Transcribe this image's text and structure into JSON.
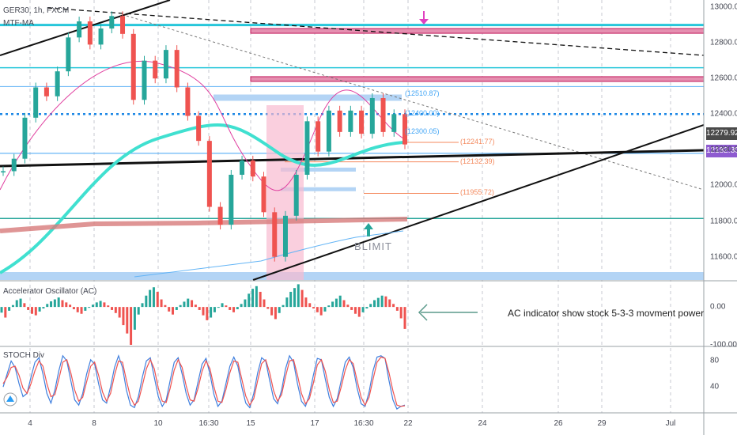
{
  "header": {
    "symbol": "GER30, 1h, FXCM",
    "overlay": "MTF-MA"
  },
  "panes": {
    "ac": {
      "title": "Accelerator Oscillator (AC)"
    },
    "stoch": {
      "title": "STOCH Div"
    }
  },
  "note": {
    "text": "AC indicator show stock 5-3-3 movment power"
  },
  "callout_label": {
    "text": "BLIMIT"
  },
  "price_badges": {
    "last": "12279.92",
    "current": "12182.30",
    "colors": {
      "last": "#4a4a4a",
      "current": "#8e5bd0"
    }
  },
  "level_labels": [
    {
      "value": 12510.87,
      "text": "(12510.87)",
      "color": "#42a5f5"
    },
    {
      "value": 12400.0,
      "text": "(12400.00)",
      "color": "#42a5f5"
    },
    {
      "value": 12300.05,
      "text": "(12300.05)",
      "color": "#42a5f5"
    },
    {
      "value": 12241.77,
      "text": "(12241.77)",
      "color": "#f48a5e"
    },
    {
      "value": 12132.39,
      "text": "(12132.39)",
      "color": "#f48a5e"
    },
    {
      "value": 11955.72,
      "text": "(11955.72)",
      "color": "#f48a5e"
    }
  ],
  "chart_data": [
    {
      "type": "line",
      "series": [
        {
          "name": "GER30",
          "y": [
            12080,
            12150,
            12380,
            12550,
            12500,
            12640,
            12830,
            12920,
            12790,
            12880,
            12950,
            12850,
            12480,
            12700,
            12600,
            12760,
            12550,
            12390,
            12250,
            11880,
            11780,
            12060,
            12140,
            12050,
            11850,
            11600,
            11830,
            12060,
            12360,
            12190,
            12420,
            12300,
            12420,
            12290,
            12490,
            12300,
            12400,
            12230
          ]
        }
      ],
      "x_ticks": [
        "4",
        "8",
        "10",
        "16:30",
        "15",
        "17",
        "16:30",
        "22",
        "24",
        "26",
        "29",
        "Jul"
      ],
      "y_ticks": [
        13000,
        12800,
        12600,
        12400,
        12200,
        12000,
        11800,
        11600
      ],
      "ylim": [
        11470,
        13040
      ],
      "colors": {
        "price": "#26a69a",
        "ma_fast": "#e040a0",
        "ma_slow": "#40e0d0",
        "ma_long": "#d77a7a"
      }
    },
    {
      "type": "bar",
      "title": "Accelerator Oscillator (AC)",
      "y_ticks": [
        0.0,
        -100.0
      ],
      "y_tick_labels": [
        "0.00",
        "-100.00"
      ],
      "ylim": [
        -100,
        65
      ],
      "values": [
        -15,
        -28,
        -10,
        5,
        18,
        22,
        10,
        -8,
        -18,
        -22,
        -12,
        -4,
        8,
        15,
        20,
        25,
        18,
        12,
        6,
        -6,
        -14,
        -18,
        -10,
        -2,
        6,
        12,
        16,
        12,
        4,
        -8,
        -16,
        -28,
        -48,
        -70,
        -100,
        -60,
        -20,
        10,
        30,
        45,
        52,
        40,
        20,
        5,
        -12,
        -20,
        -8,
        5,
        14,
        22,
        18,
        6,
        -8,
        -22,
        -35,
        -28,
        -14,
        0,
        10,
        4,
        -8,
        -14,
        -6,
        8,
        20,
        35,
        48,
        55,
        40,
        20,
        -5,
        -22,
        -32,
        -16,
        5,
        25,
        40,
        50,
        60,
        45,
        25,
        10,
        -4,
        -14,
        -22,
        -12,
        4,
        14,
        22,
        30,
        18,
        6,
        -8,
        -18,
        -26,
        -14,
        -4,
        8,
        18,
        24,
        30,
        28,
        20,
        8,
        -10,
        -30,
        -58
      ]
    },
    {
      "type": "line",
      "title": "STOCH Div",
      "y_ticks": [
        80,
        40
      ],
      "ylim": [
        0,
        100
      ],
      "series": [
        {
          "name": "K",
          "color": "#3f7fde",
          "y": [
            40,
            60,
            80,
            70,
            45,
            25,
            30,
            55,
            78,
            85,
            60,
            30,
            15,
            35,
            65,
            88,
            80,
            50,
            20,
            12,
            30,
            60,
            82,
            75,
            45,
            20,
            15,
            40,
            70,
            88,
            70,
            35,
            12,
            8,
            25,
            55,
            80,
            85,
            55,
            25,
            10,
            20,
            50,
            78,
            85,
            60,
            30,
            12,
            20,
            48,
            75,
            84,
            60,
            28,
            10,
            18,
            45,
            72,
            86,
            72,
            40,
            15,
            8,
            30,
            62,
            85,
            80,
            50,
            22,
            14,
            35,
            68,
            88,
            78,
            45,
            18,
            10,
            28,
            58,
            84,
            82,
            52,
            24,
            10,
            22,
            50,
            78,
            86,
            70,
            38,
            14,
            10,
            32,
            65,
            86,
            88,
            84,
            50,
            20,
            6,
            10,
            12
          ]
        },
        {
          "name": "D",
          "color": "#ef5350",
          "y": [
            45,
            55,
            70,
            72,
            58,
            38,
            30,
            45,
            65,
            80,
            72,
            45,
            25,
            28,
            52,
            78,
            82,
            62,
            35,
            18,
            24,
            48,
            72,
            78,
            58,
            32,
            18,
            30,
            58,
            80,
            78,
            50,
            24,
            12,
            18,
            42,
            68,
            82,
            68,
            38,
            18,
            16,
            38,
            66,
            82,
            70,
            42,
            20,
            18,
            38,
            64,
            80,
            68,
            40,
            18,
            16,
            36,
            62,
            80,
            78,
            52,
            26,
            12,
            22,
            50,
            76,
            82,
            62,
            34,
            18,
            28,
            56,
            80,
            82,
            58,
            30,
            14,
            22,
            46,
            74,
            82,
            64,
            36,
            16,
            18,
            40,
            66,
            82,
            76,
            50,
            24,
            12,
            24,
            52,
            78,
            86,
            84,
            62,
            34,
            12,
            10,
            11
          ]
        }
      ]
    }
  ]
}
